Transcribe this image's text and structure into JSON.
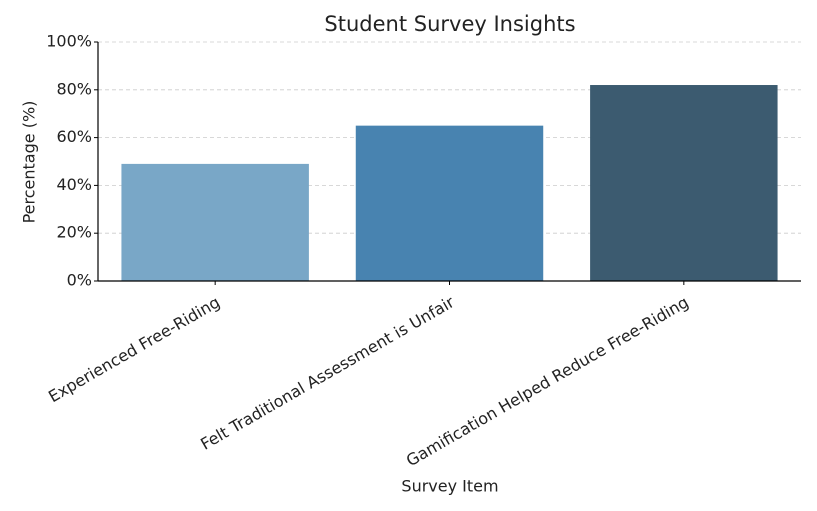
{
  "chart_data": {
    "type": "bar",
    "title": "Student Survey Insights",
    "xlabel": "Survey Item",
    "ylabel": "Percentage (%)",
    "categories": [
      "Experienced Free-Riding",
      "Felt Traditional Assessment is Unfair",
      "Gamification Helped Reduce Free-Riding"
    ],
    "values": [
      49,
      65,
      82
    ],
    "colors": [
      "#79a7c7",
      "#4883b0",
      "#3c5b70"
    ],
    "ylim": [
      0,
      100
    ],
    "yticks": [
      {
        "value": 0,
        "label": "0%"
      },
      {
        "value": 20,
        "label": "20%"
      },
      {
        "value": 40,
        "label": "40%"
      },
      {
        "value": 60,
        "label": "60%"
      },
      {
        "value": 80,
        "label": "80%"
      },
      {
        "value": 100,
        "label": "100%"
      }
    ],
    "grid": true
  }
}
